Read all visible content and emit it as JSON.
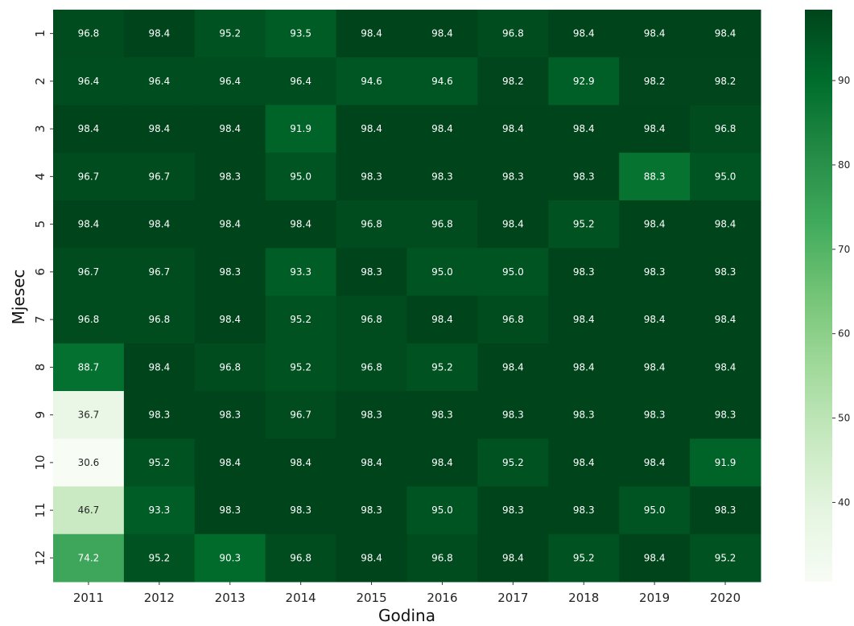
{
  "chart_data": {
    "type": "heatmap",
    "title": "",
    "xlabel": "Godina",
    "ylabel": "Mjesec",
    "x_categories": [
      "2011",
      "2012",
      "2013",
      "2014",
      "2015",
      "2016",
      "2017",
      "2018",
      "2019",
      "2020"
    ],
    "y_categories": [
      "1",
      "2",
      "3",
      "4",
      "5",
      "6",
      "7",
      "8",
      "9",
      "10",
      "11",
      "12"
    ],
    "values": [
      [
        96.8,
        98.4,
        95.2,
        93.5,
        98.4,
        98.4,
        96.8,
        98.4,
        98.4,
        98.4
      ],
      [
        96.4,
        96.4,
        96.4,
        96.4,
        94.6,
        94.6,
        98.2,
        92.9,
        98.2,
        98.2
      ],
      [
        98.4,
        98.4,
        98.4,
        91.9,
        98.4,
        98.4,
        98.4,
        98.4,
        98.4,
        96.8
      ],
      [
        96.7,
        96.7,
        98.3,
        95.0,
        98.3,
        98.3,
        98.3,
        98.3,
        88.3,
        95.0
      ],
      [
        98.4,
        98.4,
        98.4,
        98.4,
        96.8,
        96.8,
        98.4,
        95.2,
        98.4,
        98.4
      ],
      [
        96.7,
        96.7,
        98.3,
        93.3,
        98.3,
        95.0,
        95.0,
        98.3,
        98.3,
        98.3
      ],
      [
        96.8,
        96.8,
        98.4,
        95.2,
        96.8,
        98.4,
        96.8,
        98.4,
        98.4,
        98.4
      ],
      [
        88.7,
        98.4,
        96.8,
        95.2,
        96.8,
        95.2,
        98.4,
        98.4,
        98.4,
        98.4
      ],
      [
        36.7,
        98.3,
        98.3,
        96.7,
        98.3,
        98.3,
        98.3,
        98.3,
        98.3,
        98.3
      ],
      [
        30.6,
        95.2,
        98.4,
        98.4,
        98.4,
        98.4,
        95.2,
        98.4,
        98.4,
        91.9
      ],
      [
        46.7,
        93.3,
        98.3,
        98.3,
        98.3,
        95.0,
        98.3,
        98.3,
        95.0,
        98.3
      ],
      [
        74.2,
        95.2,
        90.3,
        96.8,
        98.4,
        96.8,
        98.4,
        95.2,
        98.4,
        95.2
      ]
    ],
    "value_format": "0.1f",
    "colormap": "Greens",
    "vmin": 30.6,
    "vmax": 98.4,
    "colorbar_ticks": [
      40,
      50,
      60,
      70,
      80,
      90
    ],
    "grid": false,
    "legend": "colorbar-right"
  }
}
